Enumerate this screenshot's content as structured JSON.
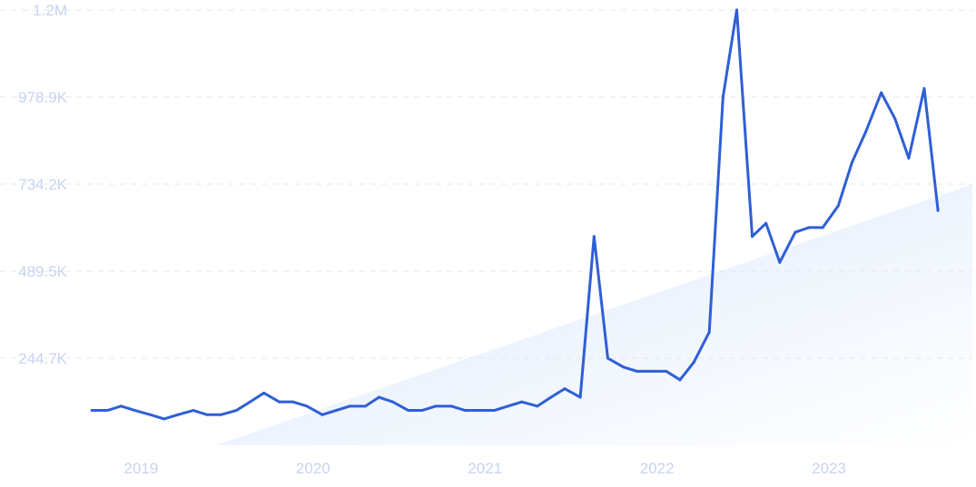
{
  "colors": {
    "line": "#2f5fd6",
    "area_start": "#dde9fb",
    "area_end": "#ffffff",
    "grid": "#e3e7ee",
    "tick": "#c7d4ef"
  },
  "chart_data": {
    "type": "line",
    "title": "",
    "xlabel": "",
    "ylabel": "",
    "grid": true,
    "legend": "none",
    "x_ticks": [
      {
        "label": "2019",
        "x": 2019.0
      },
      {
        "label": "2020",
        "x": 2020.0
      },
      {
        "label": "2021",
        "x": 2021.0
      },
      {
        "label": "2022",
        "x": 2022.0
      },
      {
        "label": "2023",
        "x": 2023.0
      }
    ],
    "y_ticks": [
      {
        "label": "244.7K",
        "value": 244700
      },
      {
        "label": "489.5K",
        "value": 489500
      },
      {
        "label": "734.2K",
        "value": 734200
      },
      {
        "label": "978.9K",
        "value": 978900
      },
      {
        "label": "1.2M",
        "value": 1223600
      }
    ],
    "xlim": [
      2018.85,
      2023.95
    ],
    "ylim": [
      0,
      1223600
    ],
    "series": [
      {
        "x": [
          2018.83,
          2018.92,
          2019.0,
          2019.08,
          2019.17,
          2019.25,
          2019.33,
          2019.42,
          2019.5,
          2019.58,
          2019.67,
          2019.75,
          2019.83,
          2019.92,
          2020.0,
          2020.08,
          2020.17,
          2020.25,
          2020.33,
          2020.42,
          2020.5,
          2020.58,
          2020.67,
          2020.75,
          2020.83,
          2020.92,
          2021.0,
          2021.08,
          2021.17,
          2021.25,
          2021.33,
          2021.42,
          2021.5,
          2021.58,
          2021.67,
          2021.75,
          2021.83,
          2021.92,
          2022.0,
          2022.08,
          2022.17,
          2022.25,
          2022.33,
          2022.42,
          2022.5,
          2022.58,
          2022.67,
          2022.75,
          2022.83,
          2022.92,
          2023.0,
          2023.08,
          2023.17,
          2023.25,
          2023.33,
          2023.42,
          2023.5,
          2023.58,
          2023.67,
          2023.75
        ],
        "values": [
          98000,
          98000,
          110000,
          98000,
          86000,
          74000,
          86000,
          98000,
          86000,
          86000,
          98000,
          122000,
          147000,
          122000,
          122000,
          110000,
          86000,
          98000,
          110000,
          110000,
          135000,
          122000,
          98000,
          98000,
          110000,
          110000,
          98000,
          98000,
          98000,
          110000,
          122000,
          110000,
          135000,
          159000,
          135000,
          587000,
          244700,
          220000,
          208000,
          208000,
          208000,
          184000,
          233000,
          318000,
          978900,
          1223600,
          587000,
          624000,
          514000,
          599000,
          612000,
          612000,
          673000,
          795000,
          881000,
          991000,
          918000,
          807000,
          1003000,
          660000
        ]
      }
    ]
  }
}
